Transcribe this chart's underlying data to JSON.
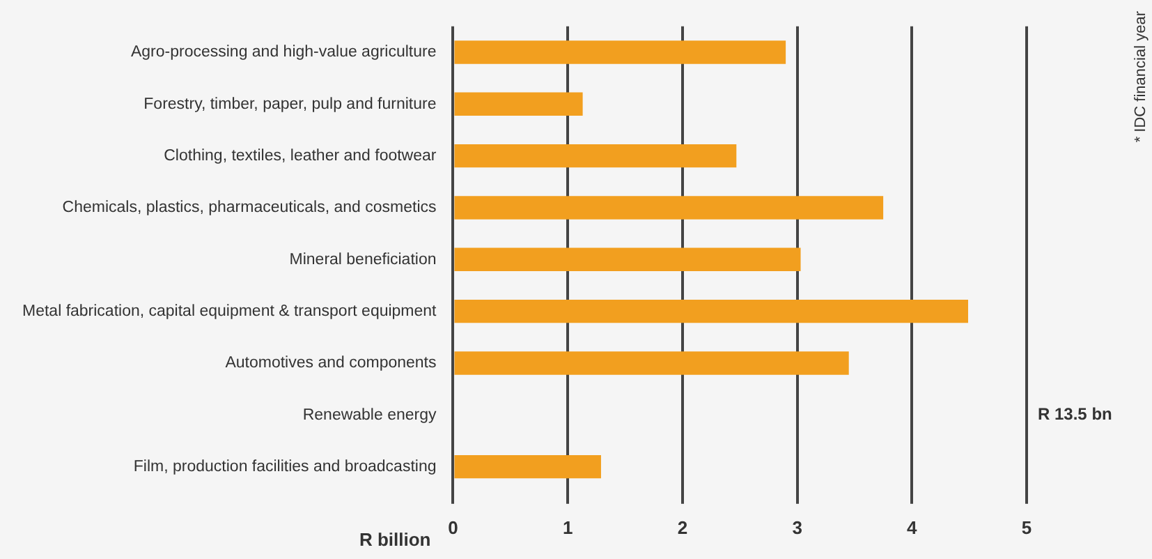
{
  "chart_data": {
    "type": "bar",
    "orientation": "horizontal",
    "xlabel": "R billion",
    "categories": [
      "Agro-processing and high-value agriculture",
      "Forestry, timber, paper, pulp and furniture",
      "Clothing, textiles, leather and footwear",
      "Chemicals, plastics, pharmaceuticals, and cosmetics",
      "Mineral beneficiation",
      "Metal fabrication, capital equipment & transport equipment",
      "Automotives and components",
      "Renewable energy",
      "Film, production facilities and broadcasting"
    ],
    "values": [
      2.9,
      1.13,
      2.47,
      3.75,
      3.03,
      4.49,
      3.45,
      null,
      1.29
    ],
    "value_labels": [
      null,
      null,
      null,
      null,
      null,
      null,
      null,
      "R 13.5 bn",
      null
    ],
    "color": "#f29f1f",
    "xlim": [
      0,
      5
    ],
    "xticks": [
      0,
      1,
      2,
      3,
      4,
      5
    ],
    "grid": "x",
    "annotations": [
      "* IDC financial year"
    ]
  }
}
